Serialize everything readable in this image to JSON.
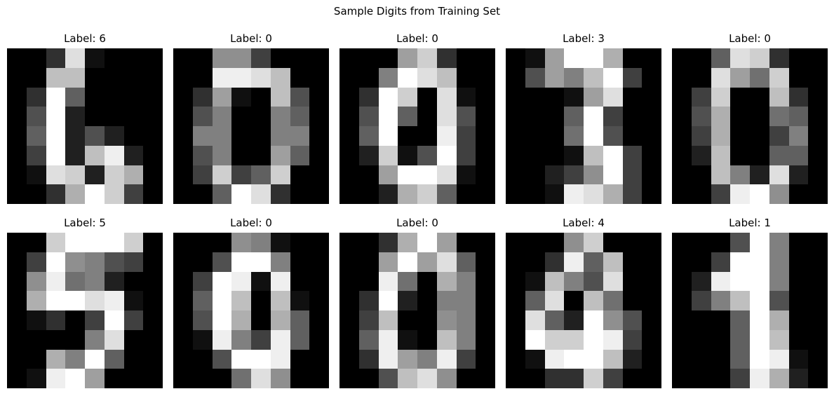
{
  "figure": {
    "title": "Sample Digits from Training Set"
  },
  "chart_data": {
    "type": "heatmap",
    "colormap": "gray",
    "vmin": 0,
    "vmax": 16,
    "grid": false,
    "axes": "off",
    "layout": "2x5",
    "images": [
      {
        "title": "Label: 6",
        "label": 6,
        "pixels": [
          [
            0,
            0,
            3,
            14,
            1,
            0,
            0,
            0
          ],
          [
            0,
            0,
            12,
            12,
            0,
            0,
            0,
            0
          ],
          [
            0,
            3,
            16,
            6,
            0,
            0,
            0,
            0
          ],
          [
            0,
            5,
            16,
            2,
            0,
            0,
            0,
            0
          ],
          [
            0,
            6,
            16,
            2,
            5,
            2,
            0,
            0
          ],
          [
            0,
            4,
            16,
            2,
            12,
            15,
            2,
            0
          ],
          [
            0,
            1,
            14,
            13,
            2,
            13,
            11,
            0
          ],
          [
            0,
            0,
            3,
            11,
            16,
            13,
            4,
            0
          ]
        ]
      },
      {
        "title": "Label: 0",
        "label": 0,
        "pixels": [
          [
            0,
            0,
            9,
            9,
            4,
            0,
            0,
            0
          ],
          [
            0,
            0,
            15,
            15,
            14,
            12,
            0,
            0
          ],
          [
            0,
            3,
            10,
            1,
            0,
            12,
            5,
            0
          ],
          [
            0,
            5,
            8,
            0,
            0,
            8,
            6,
            0
          ],
          [
            0,
            8,
            8,
            0,
            0,
            8,
            8,
            0
          ],
          [
            0,
            5,
            8,
            0,
            0,
            10,
            6,
            0
          ],
          [
            0,
            4,
            13,
            4,
            6,
            13,
            0,
            0
          ],
          [
            0,
            0,
            6,
            16,
            14,
            3,
            0,
            0
          ]
        ]
      },
      {
        "title": "Label: 0",
        "label": 0,
        "pixels": [
          [
            0,
            0,
            0,
            10,
            13,
            3,
            0,
            0
          ],
          [
            0,
            0,
            8,
            16,
            14,
            12,
            0,
            0
          ],
          [
            0,
            3,
            16,
            13,
            0,
            14,
            1,
            0
          ],
          [
            0,
            5,
            16,
            6,
            0,
            14,
            5,
            0
          ],
          [
            0,
            6,
            16,
            0,
            0,
            15,
            4,
            0
          ],
          [
            0,
            2,
            13,
            1,
            5,
            16,
            4,
            0
          ],
          [
            0,
            0,
            10,
            16,
            16,
            14,
            1,
            0
          ],
          [
            0,
            0,
            2,
            11,
            13,
            6,
            0,
            0
          ]
        ]
      },
      {
        "title": "Label: 3",
        "label": 3,
        "pixels": [
          [
            0,
            1,
            10,
            16,
            16,
            11,
            0,
            0
          ],
          [
            0,
            5,
            10,
            8,
            12,
            16,
            4,
            0
          ],
          [
            0,
            0,
            0,
            1,
            10,
            14,
            0,
            0
          ],
          [
            0,
            0,
            0,
            6,
            16,
            4,
            0,
            0
          ],
          [
            0,
            0,
            0,
            7,
            16,
            5,
            0,
            0
          ],
          [
            0,
            0,
            0,
            1,
            12,
            16,
            4,
            0
          ],
          [
            0,
            0,
            2,
            4,
            9,
            16,
            4,
            0
          ],
          [
            0,
            0,
            1,
            15,
            14,
            11,
            4,
            0
          ]
        ]
      },
      {
        "title": "Label: 0",
        "label": 0,
        "pixels": [
          [
            0,
            0,
            6,
            14,
            13,
            3,
            0,
            0
          ],
          [
            0,
            0,
            14,
            10,
            7,
            13,
            0,
            0
          ],
          [
            0,
            4,
            13,
            0,
            0,
            12,
            3,
            0
          ],
          [
            0,
            5,
            11,
            0,
            0,
            7,
            6,
            0
          ],
          [
            0,
            4,
            11,
            0,
            0,
            4,
            8,
            0
          ],
          [
            0,
            2,
            12,
            0,
            0,
            6,
            6,
            0
          ],
          [
            0,
            0,
            12,
            8,
            2,
            14,
            2,
            0
          ],
          [
            0,
            0,
            4,
            15,
            16,
            9,
            0,
            0
          ]
        ]
      },
      {
        "title": "Label: 5",
        "label": 5,
        "pixels": [
          [
            0,
            0,
            13,
            16,
            16,
            16,
            13,
            0
          ],
          [
            0,
            4,
            16,
            9,
            8,
            5,
            4,
            0
          ],
          [
            0,
            9,
            15,
            7,
            8,
            2,
            0,
            0
          ],
          [
            0,
            11,
            16,
            16,
            14,
            15,
            1,
            0
          ],
          [
            0,
            1,
            3,
            0,
            4,
            16,
            4,
            0
          ],
          [
            0,
            0,
            0,
            0,
            8,
            14,
            0,
            0
          ],
          [
            0,
            0,
            11,
            8,
            16,
            6,
            0,
            0
          ],
          [
            0,
            1,
            15,
            16,
            10,
            0,
            0,
            0
          ]
        ]
      },
      {
        "title": "Label: 0",
        "label": 0,
        "pixels": [
          [
            0,
            0,
            0,
            9,
            8,
            1,
            0,
            0
          ],
          [
            0,
            0,
            5,
            16,
            16,
            8,
            0,
            0
          ],
          [
            0,
            4,
            16,
            15,
            1,
            15,
            0,
            0
          ],
          [
            0,
            6,
            16,
            12,
            0,
            12,
            1,
            0
          ],
          [
            0,
            5,
            16,
            11,
            0,
            11,
            6,
            0
          ],
          [
            0,
            1,
            15,
            8,
            4,
            15,
            6,
            0
          ],
          [
            0,
            0,
            5,
            16,
            16,
            15,
            0,
            0
          ],
          [
            0,
            0,
            0,
            7,
            14,
            9,
            0,
            0
          ]
        ]
      },
      {
        "title": "Label: 0",
        "label": 0,
        "pixels": [
          [
            0,
            0,
            3,
            11,
            16,
            10,
            0,
            0
          ],
          [
            0,
            0,
            10,
            16,
            10,
            14,
            6,
            0
          ],
          [
            0,
            0,
            15,
            7,
            0,
            11,
            8,
            0
          ],
          [
            0,
            3,
            16,
            2,
            0,
            8,
            8,
            0
          ],
          [
            0,
            4,
            12,
            0,
            0,
            9,
            8,
            0
          ],
          [
            0,
            6,
            15,
            1,
            0,
            12,
            8,
            0
          ],
          [
            0,
            3,
            15,
            10,
            8,
            15,
            4,
            0
          ],
          [
            0,
            0,
            5,
            12,
            14,
            9,
            0,
            0
          ]
        ]
      },
      {
        "title": "Label: 4",
        "label": 4,
        "pixels": [
          [
            0,
            0,
            0,
            9,
            13,
            0,
            0,
            0
          ],
          [
            0,
            0,
            3,
            15,
            6,
            12,
            0,
            0
          ],
          [
            0,
            1,
            12,
            8,
            5,
            14,
            0,
            0
          ],
          [
            0,
            6,
            14,
            0,
            12,
            7,
            0,
            0
          ],
          [
            0,
            14,
            6,
            2,
            16,
            9,
            5,
            0
          ],
          [
            0,
            16,
            13,
            13,
            16,
            15,
            4,
            0
          ],
          [
            0,
            1,
            15,
            16,
            16,
            12,
            2,
            0
          ],
          [
            0,
            0,
            3,
            3,
            13,
            4,
            0,
            0
          ]
        ]
      },
      {
        "title": "Label: 1",
        "label": 1,
        "pixels": [
          [
            0,
            0,
            0,
            5,
            16,
            8,
            0,
            0
          ],
          [
            0,
            0,
            4,
            16,
            16,
            8,
            0,
            0
          ],
          [
            0,
            2,
            15,
            16,
            16,
            8,
            0,
            0
          ],
          [
            0,
            4,
            8,
            12,
            16,
            5,
            0,
            0
          ],
          [
            0,
            0,
            0,
            6,
            16,
            11,
            0,
            0
          ],
          [
            0,
            0,
            0,
            6,
            16,
            12,
            0,
            0
          ],
          [
            0,
            0,
            0,
            6,
            16,
            15,
            1,
            0
          ],
          [
            0,
            0,
            0,
            4,
            15,
            11,
            2,
            0
          ]
        ]
      }
    ]
  }
}
